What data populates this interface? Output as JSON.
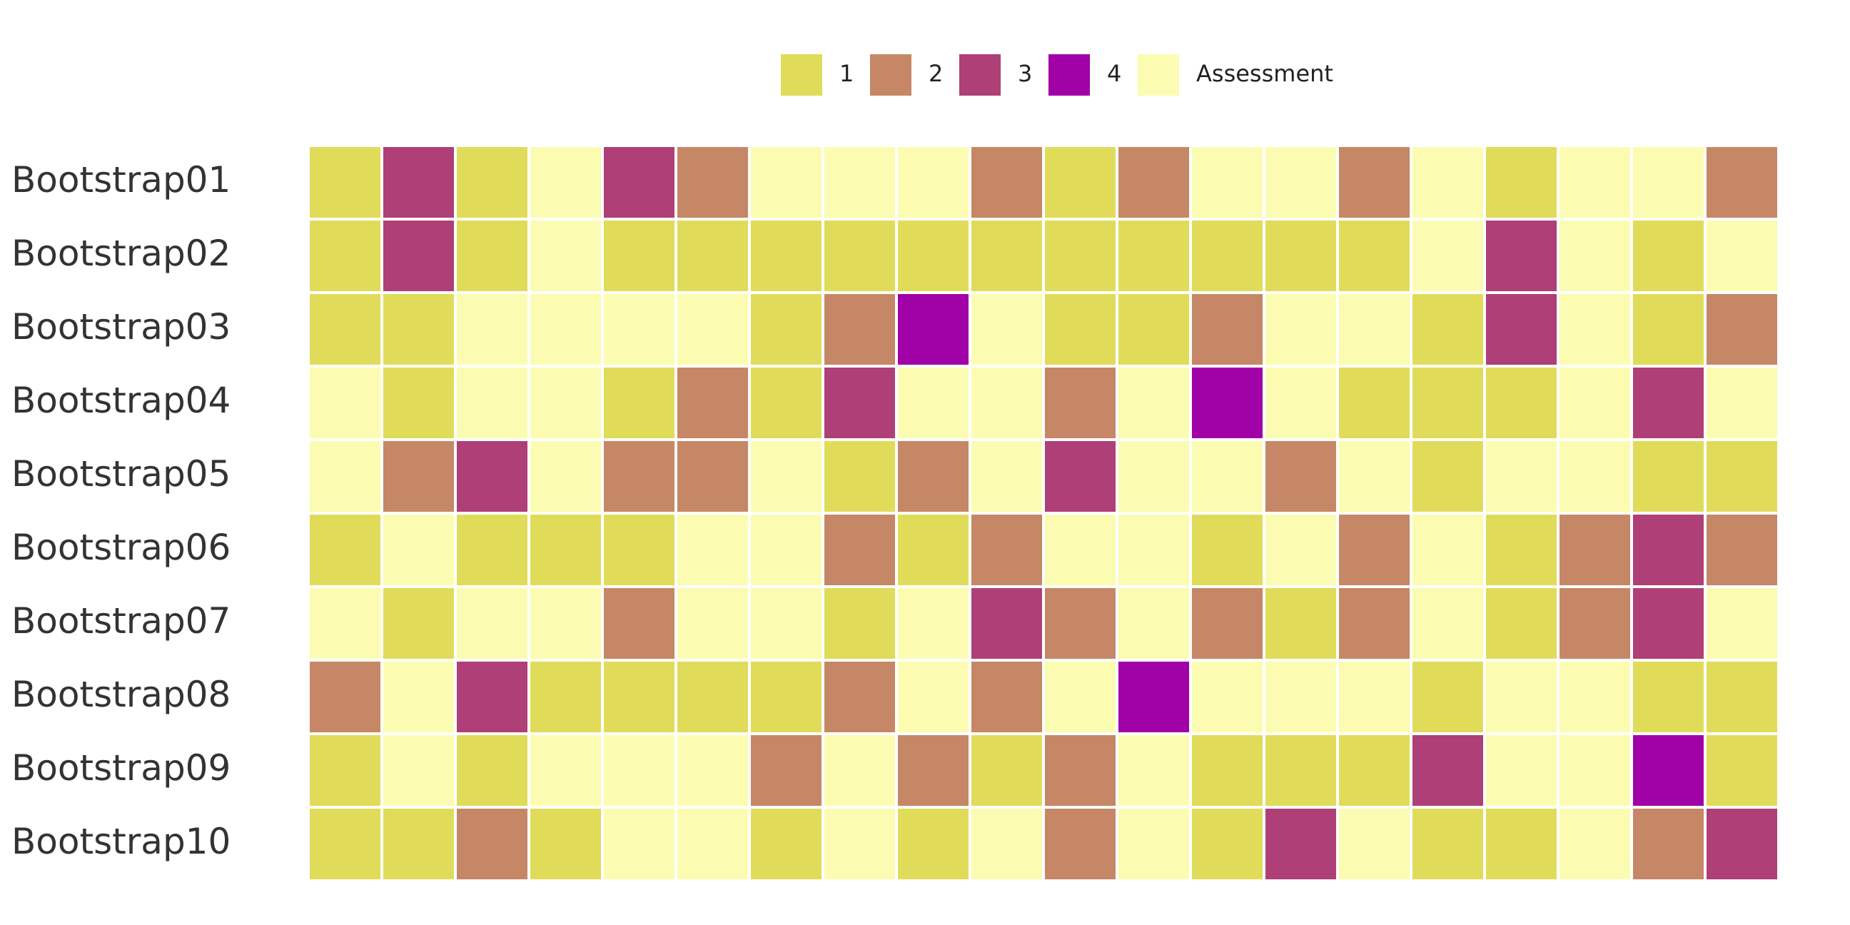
{
  "chart_data": {
    "type": "heatmap",
    "legend": {
      "placement": "top-center",
      "entries": [
        {
          "label": "1",
          "value": 1,
          "color": "#e0dc5a"
        },
        {
          "label": "2",
          "value": 2,
          "color": "#c68767"
        },
        {
          "label": "3",
          "value": 3,
          "color": "#ae3f77"
        },
        {
          "label": "4",
          "value": 4,
          "color": "#a002a8"
        },
        {
          "label": "Assessment",
          "value": 0,
          "color": "#fbfcb2"
        }
      ]
    },
    "rows": [
      "Bootstrap01",
      "Bootstrap02",
      "Bootstrap03",
      "Bootstrap04",
      "Bootstrap05",
      "Bootstrap06",
      "Bootstrap07",
      "Bootstrap08",
      "Bootstrap09",
      "Bootstrap10"
    ],
    "values": [
      [
        1,
        3,
        1,
        0,
        3,
        2,
        0,
        0,
        0,
        2,
        1,
        2,
        0,
        0,
        2,
        0,
        1,
        0,
        0,
        2
      ],
      [
        1,
        3,
        1,
        0,
        1,
        1,
        1,
        1,
        1,
        1,
        1,
        1,
        1,
        1,
        1,
        0,
        3,
        0,
        1,
        0
      ],
      [
        1,
        1,
        0,
        0,
        0,
        0,
        1,
        2,
        4,
        0,
        1,
        1,
        2,
        0,
        0,
        1,
        3,
        0,
        1,
        2
      ],
      [
        0,
        1,
        0,
        0,
        1,
        2,
        1,
        3,
        0,
        0,
        2,
        0,
        4,
        0,
        1,
        1,
        1,
        0,
        3,
        0
      ],
      [
        0,
        2,
        3,
        0,
        2,
        2,
        0,
        1,
        2,
        0,
        3,
        0,
        0,
        2,
        0,
        1,
        0,
        0,
        1,
        1
      ],
      [
        1,
        0,
        1,
        1,
        1,
        0,
        0,
        2,
        1,
        2,
        0,
        0,
        1,
        0,
        2,
        0,
        1,
        2,
        3,
        2
      ],
      [
        0,
        1,
        0,
        0,
        2,
        0,
        0,
        1,
        0,
        3,
        2,
        0,
        2,
        1,
        2,
        0,
        1,
        2,
        3,
        0
      ],
      [
        2,
        0,
        3,
        1,
        1,
        1,
        1,
        2,
        0,
        2,
        0,
        4,
        0,
        0,
        0,
        1,
        0,
        0,
        1,
        1
      ],
      [
        1,
        0,
        1,
        0,
        0,
        0,
        2,
        0,
        2,
        1,
        2,
        0,
        1,
        1,
        1,
        3,
        0,
        0,
        4,
        1
      ],
      [
        1,
        1,
        2,
        1,
        0,
        0,
        1,
        0,
        1,
        0,
        2,
        0,
        1,
        3,
        0,
        1,
        1,
        0,
        2,
        3
      ]
    ],
    "grid": false
  }
}
